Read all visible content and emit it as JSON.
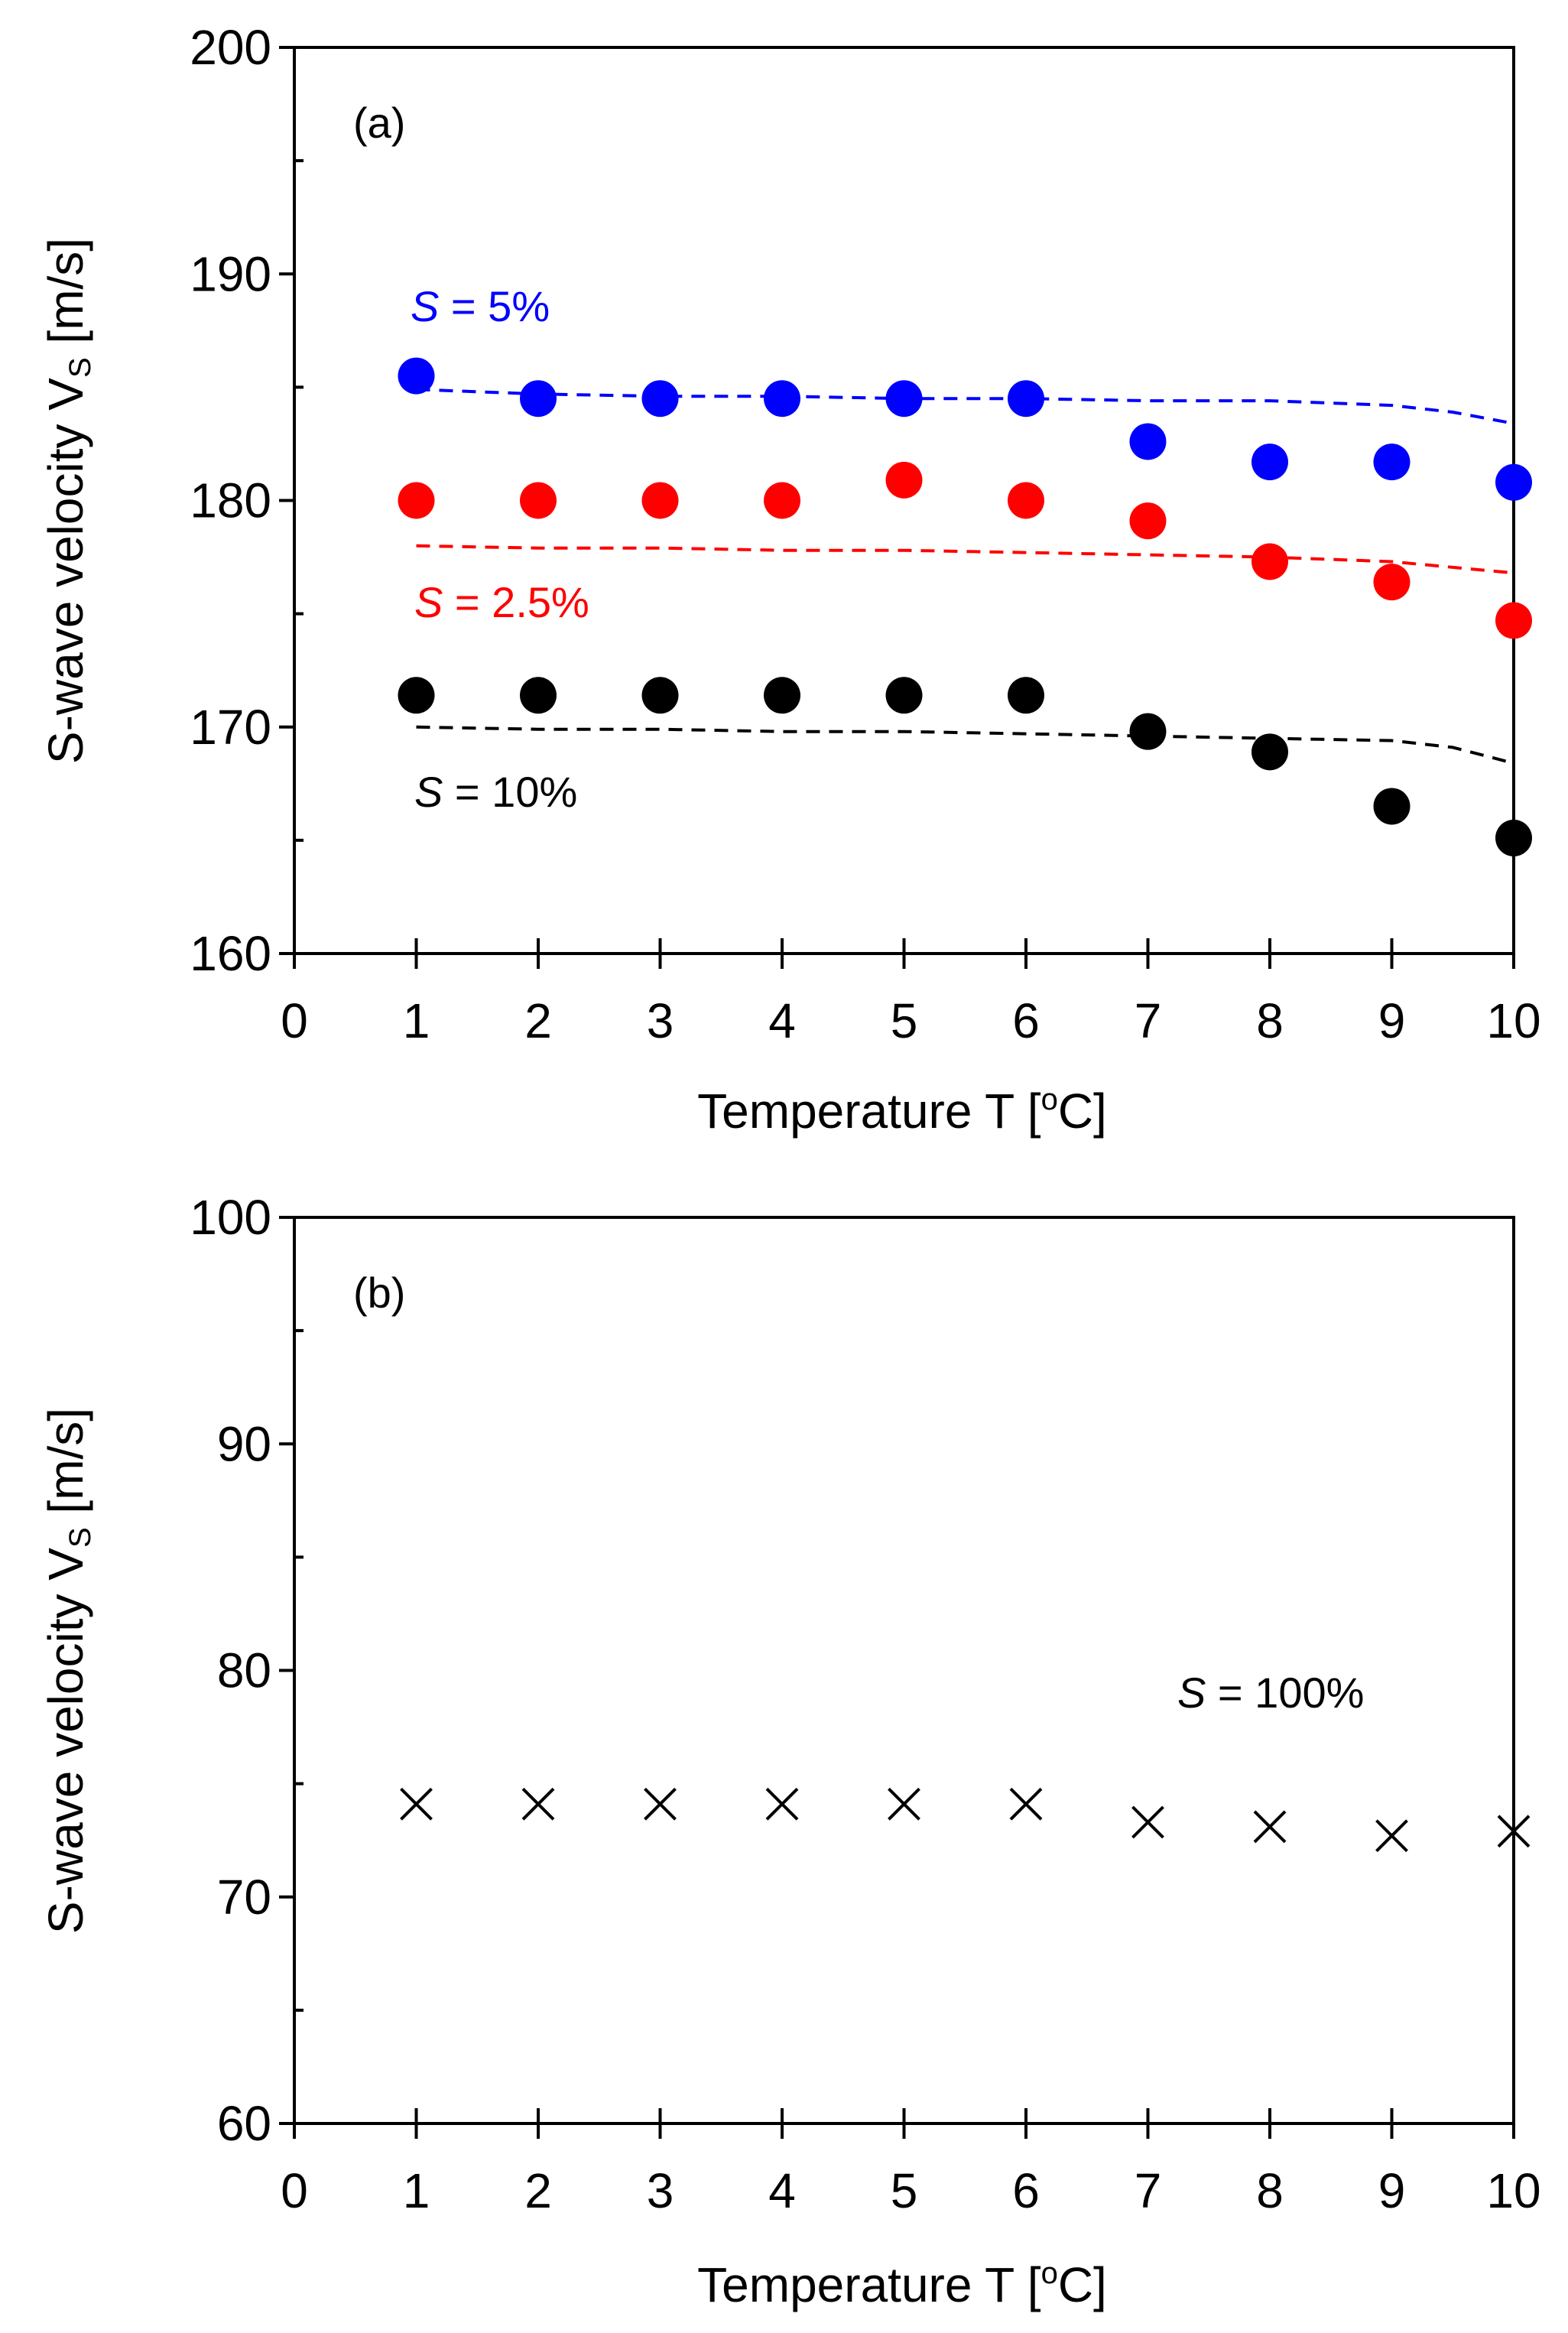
{
  "chart_data": [
    {
      "type": "scatter",
      "panel_label": "(a)",
      "xlabel": "Temperature T [",
      "xlabel_sup": "o",
      "xlabel_end": "C]",
      "ylabel": "S-wave velocity V",
      "ylabel_sub": "S",
      "ylabel_end": " [m/s]",
      "xlim": [
        0,
        10
      ],
      "ylim": [
        160,
        200
      ],
      "xticks": [
        "0",
        "1",
        "2",
        "3",
        "4",
        "5",
        "6",
        "7",
        "8",
        "9",
        "10"
      ],
      "yticks": [
        "160",
        "170",
        "180",
        "190",
        "200"
      ],
      "series": [
        {
          "name": "S = 5%",
          "label_var": "S",
          "label_rest": " = 5%",
          "color": "#0000ff",
          "marker": "circle",
          "x": [
            1,
            2,
            3,
            4,
            5,
            6,
            7,
            8,
            9,
            10
          ],
          "values": [
            185.5,
            184.5,
            184.5,
            184.5,
            184.5,
            184.5,
            182.6,
            181.7,
            181.7,
            180.8
          ],
          "model_x": [
            1,
            2,
            3,
            4,
            5,
            6,
            7,
            8,
            9,
            9.5,
            10
          ],
          "model_y": [
            184.9,
            184.7,
            184.6,
            184.6,
            184.5,
            184.5,
            184.4,
            184.4,
            184.2,
            183.9,
            183.4
          ]
        },
        {
          "name": "S = 2.5%",
          "label_var": "S",
          "label_rest": " = 2.5%",
          "color": "#ff0000",
          "marker": "circle",
          "x": [
            1,
            2,
            3,
            4,
            5,
            6,
            7,
            8,
            9,
            10
          ],
          "values": [
            180.0,
            180.0,
            180.0,
            180.0,
            180.9,
            180.0,
            179.1,
            177.3,
            176.4,
            174.7
          ],
          "model_x": [
            1,
            2,
            3,
            4,
            5,
            6,
            7,
            8,
            9,
            10
          ],
          "model_y": [
            178.0,
            177.9,
            177.9,
            177.8,
            177.8,
            177.7,
            177.6,
            177.5,
            177.3,
            176.8
          ]
        },
        {
          "name": "S = 10%",
          "label_var": "S",
          "label_rest": " = 10%",
          "color": "#000000",
          "marker": "circle",
          "x": [
            1,
            2,
            3,
            4,
            5,
            6,
            7,
            8,
            9,
            10
          ],
          "values": [
            171.4,
            171.4,
            171.4,
            171.4,
            171.4,
            171.4,
            169.8,
            168.9,
            166.5,
            165.1
          ],
          "model_x": [
            1,
            2,
            3,
            4,
            5,
            6,
            7,
            8,
            9,
            9.5,
            10
          ],
          "model_y": [
            170.0,
            169.9,
            169.9,
            169.8,
            169.8,
            169.7,
            169.6,
            169.5,
            169.4,
            169.1,
            168.4
          ]
        }
      ]
    },
    {
      "type": "scatter",
      "panel_label": "(b)",
      "xlabel": "Temperature T [",
      "xlabel_sup": "o",
      "xlabel_end": "C]",
      "ylabel": "S-wave velocity V",
      "ylabel_sub": "S",
      "ylabel_end": " [m/s]",
      "xlim": [
        0,
        10
      ],
      "ylim": [
        60,
        100
      ],
      "xticks": [
        "0",
        "1",
        "2",
        "3",
        "4",
        "5",
        "6",
        "7",
        "8",
        "9",
        "10"
      ],
      "yticks": [
        "60",
        "70",
        "80",
        "90",
        "100"
      ],
      "series": [
        {
          "name": "S = 100%",
          "label_var": "S",
          "label_rest": " = 100%",
          "color": "#000000",
          "marker": "x",
          "x": [
            1,
            2,
            3,
            4,
            5,
            6,
            7,
            8,
            9,
            10
          ],
          "values": [
            74.1,
            74.1,
            74.1,
            74.1,
            74.1,
            74.1,
            73.3,
            73.1,
            72.7,
            72.9
          ]
        }
      ]
    }
  ]
}
